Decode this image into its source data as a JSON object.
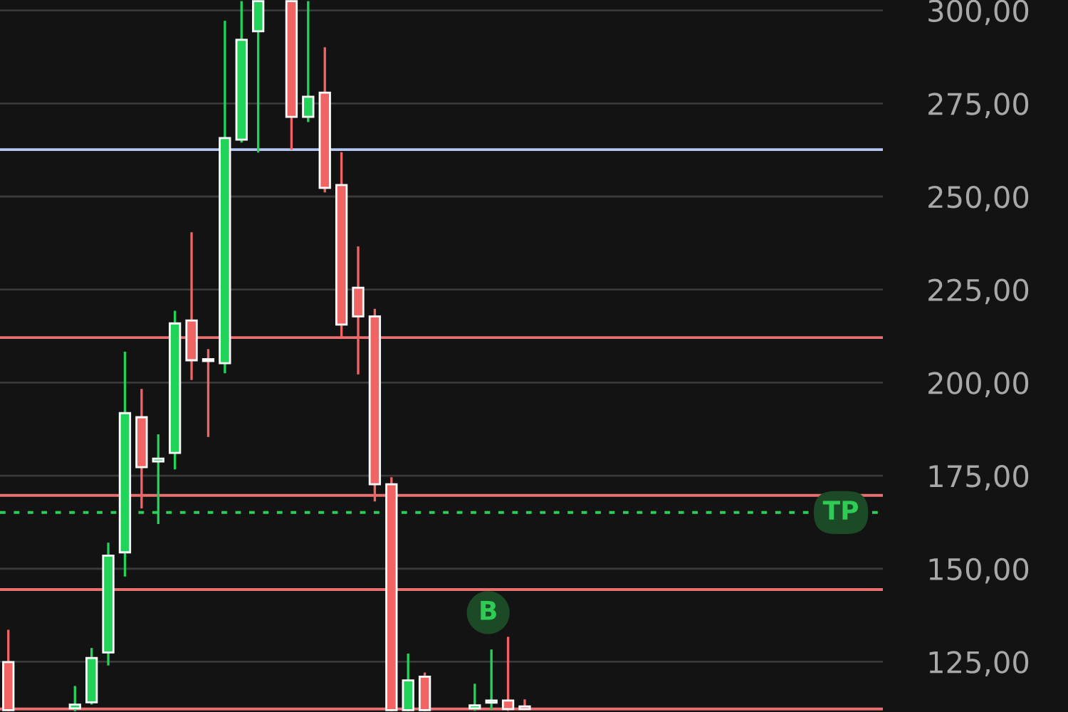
{
  "chart_data": {
    "type": "candlestick",
    "categories": [
      null,
      null,
      null,
      null,
      null,
      null,
      null,
      null,
      null,
      null,
      null,
      null,
      null,
      null,
      null,
      null,
      null,
      null,
      null,
      null,
      null,
      null,
      null,
      null,
      null,
      null,
      null,
      null,
      null,
      null,
      null,
      null,
      null,
      null,
      null,
      null,
      null,
      null,
      null,
      null,
      null,
      null,
      null,
      null,
      null,
      null,
      null,
      null,
      null,
      null,
      null,
      null,
      null
    ],
    "ohlc": [
      [
        124.9,
        133.6,
        111.7,
        112.0
      ],
      null,
      null,
      null,
      [
        112.5,
        118.5,
        111.7,
        113.5
      ],
      [
        114.1,
        128.7,
        113.5,
        126.0
      ],
      [
        127.5,
        157.0,
        124.0,
        153.5
      ],
      [
        154.4,
        208.3,
        147.9,
        191.8
      ],
      [
        190.7,
        198.3,
        166.2,
        177.3
      ],
      [
        178.8,
        186.1,
        162.0,
        179.6
      ],
      [
        181.1,
        219.3,
        176.7,
        215.9
      ],
      [
        216.7,
        240.4,
        200.7,
        206.0
      ],
      [
        206.3,
        209.0,
        185.4,
        205.8
      ],
      [
        205.2,
        297.2,
        202.5,
        265.7
      ],
      [
        265.3,
        302.5,
        264.5,
        292.1
      ],
      [
        294.4,
        302.7,
        261.8,
        302.5
      ],
      null,
      [
        302.5,
        302.7,
        262.6,
        271.4
      ],
      [
        271.4,
        302.5,
        270.0,
        276.8
      ],
      [
        277.9,
        290.1,
        251.1,
        252.3
      ],
      [
        253.1,
        261.9,
        212.1,
        215.6
      ],
      [
        225.5,
        236.6,
        202.2,
        217.8
      ],
      [
        217.8,
        219.8,
        168.1,
        172.7
      ],
      [
        172.7,
        174.6,
        111.7,
        112.0
      ],
      [
        112.0,
        127.2,
        111.7,
        120.0
      ],
      [
        121.0,
        122.1,
        111.7,
        112.0
      ],
      null,
      null,
      [
        112.5,
        119.1,
        111.8,
        113.3
      ],
      [
        114.0,
        128.3,
        112.0,
        114.6
      ],
      [
        114.6,
        131.7,
        111.8,
        112.3
      ],
      [
        113.0,
        114.9,
        112.0,
        112.3
      ],
      null,
      null,
      null,
      null,
      null,
      null,
      null,
      null,
      null,
      null,
      null,
      null,
      null,
      null,
      null,
      null,
      null,
      null,
      null,
      null,
      null
    ],
    "colors": [
      "#f06464",
      null,
      null,
      null,
      "#22d35a",
      "#22d35a",
      "#22d35a",
      "#22d35a",
      "#f06464",
      "#22d35a",
      "#22d35a",
      "#f06464",
      "#f06464",
      "#22d35a",
      "#22d35a",
      "#22d35a",
      null,
      "#f06464",
      "#22d35a",
      "#f06464",
      "#f06464",
      "#f06464",
      "#f06464",
      "#f06464",
      "#22d35a",
      "#f06464",
      null,
      null,
      "#22d35a",
      "#22d35a",
      "#f06464",
      "#f06464",
      null,
      null,
      null,
      null,
      null,
      null,
      null,
      null,
      null,
      null,
      null,
      null,
      null,
      null,
      null,
      null,
      null,
      null,
      null,
      null,
      null
    ],
    "ylim": [
      111.5,
      302.8
    ],
    "yticks": [
      {
        "value": 125,
        "label": "125,00"
      },
      {
        "value": 150,
        "label": "150,00"
      },
      {
        "value": 175,
        "label": "175,00"
      },
      {
        "value": 200,
        "label": "200,00"
      },
      {
        "value": 225,
        "label": "225,00"
      },
      {
        "value": 250,
        "label": "250,00"
      },
      {
        "value": 275,
        "label": "275,00"
      },
      {
        "value": 300,
        "label": "300,00"
      }
    ],
    "tick_labels": "y",
    "grid": "y",
    "ref_lines": [
      {
        "axis": "y",
        "value": 262.6,
        "color": "#b4c6f2"
      },
      {
        "axis": "y",
        "value": 212.1,
        "color": "#e87070"
      },
      {
        "axis": "y",
        "value": 169.7,
        "color": "#e87070"
      },
      {
        "axis": "y",
        "value": 165.1,
        "color": "#2ecc55",
        "line_style": "dotted",
        "label": "TP"
      },
      {
        "axis": "y",
        "value": 144.4,
        "color": "#e87070"
      },
      {
        "axis": "y",
        "value": 112.3,
        "color": "#e87070"
      }
    ],
    "annotations": [
      {
        "text": "B",
        "y": 138.2
      }
    ]
  }
}
